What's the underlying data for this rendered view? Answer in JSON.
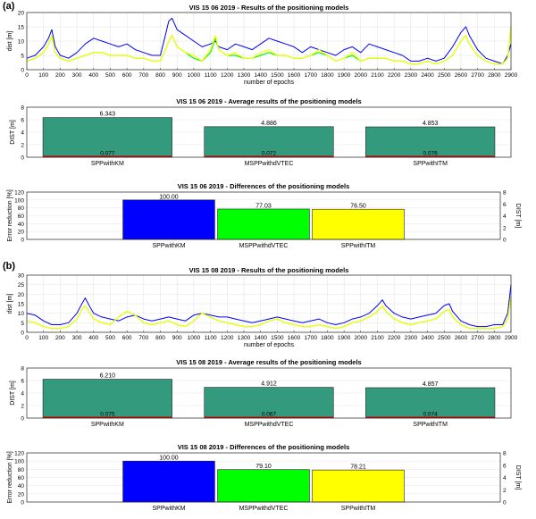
{
  "figure": {
    "panel_a_label": "(a)",
    "panel_b_label": "(b)"
  },
  "chart_data": [
    {
      "id": "a-line",
      "type": "line",
      "title": "VIS 15 06 2019 - Results of the positioning models",
      "xlabel": "number of epochs",
      "ylabel": "dist [m]",
      "xlim": [
        0,
        2900
      ],
      "ylim": [
        0,
        20
      ],
      "xticks": [
        0,
        100,
        200,
        300,
        400,
        500,
        600,
        700,
        800,
        900,
        1000,
        1100,
        1200,
        1300,
        1400,
        1500,
        1600,
        1700,
        1800,
        1900,
        2000,
        2100,
        2200,
        2300,
        2400,
        2500,
        2600,
        2700,
        2800,
        2900
      ],
      "yticks": [
        0,
        5,
        10,
        15,
        20
      ],
      "grid": true,
      "series": [
        {
          "name": "SPPwithKM",
          "color": "#0000ff",
          "x": [
            0,
            50,
            100,
            130,
            150,
            170,
            200,
            250,
            300,
            350,
            400,
            450,
            500,
            550,
            600,
            650,
            700,
            750,
            800,
            830,
            850,
            870,
            900,
            950,
            1000,
            1050,
            1100,
            1130,
            1150,
            1200,
            1250,
            1300,
            1350,
            1400,
            1450,
            1500,
            1550,
            1600,
            1650,
            1700,
            1750,
            1800,
            1850,
            1900,
            1950,
            2000,
            2050,
            2100,
            2150,
            2200,
            2250,
            2300,
            2350,
            2400,
            2450,
            2500,
            2550,
            2600,
            2630,
            2650,
            2700,
            2750,
            2800,
            2850,
            2880,
            2900
          ],
          "y": [
            4,
            5,
            8,
            11,
            14,
            8,
            5,
            4,
            6,
            9,
            11,
            10,
            9,
            8,
            9,
            7,
            6,
            5,
            5,
            12,
            17,
            18,
            14,
            12,
            10,
            8,
            9,
            10,
            8,
            7,
            9,
            8,
            7,
            9,
            11,
            10,
            9,
            8,
            6,
            8,
            7,
            6,
            5,
            7,
            8,
            6,
            9,
            8,
            7,
            6,
            5,
            3,
            3,
            4,
            3,
            4,
            8,
            13,
            15,
            12,
            7,
            4,
            3,
            2,
            5,
            9
          ]
        },
        {
          "name": "MSPPwithdVTEC",
          "color": "#00ff00",
          "x": [
            0,
            50,
            100,
            130,
            150,
            170,
            200,
            250,
            300,
            350,
            400,
            450,
            500,
            550,
            600,
            650,
            700,
            750,
            800,
            830,
            850,
            870,
            900,
            950,
            1000,
            1050,
            1100,
            1130,
            1150,
            1200,
            1250,
            1300,
            1350,
            1400,
            1450,
            1500,
            1550,
            1600,
            1650,
            1700,
            1750,
            1800,
            1850,
            1900,
            1950,
            2000,
            2050,
            2100,
            2150,
            2200,
            2250,
            2300,
            2350,
            2400,
            2450,
            2500,
            2550,
            2600,
            2630,
            2650,
            2700,
            2750,
            2800,
            2850,
            2880,
            2900
          ],
          "y": [
            3,
            4,
            6,
            9,
            12,
            6,
            4,
            3,
            4,
            5,
            6,
            6,
            5,
            5,
            5,
            4,
            4,
            3,
            3,
            7,
            10,
            12,
            8,
            6,
            4,
            3,
            6,
            11,
            7,
            5,
            5,
            4,
            4,
            5,
            6,
            5,
            5,
            4,
            4,
            5,
            6,
            5,
            3,
            4,
            5,
            3,
            4,
            4,
            4,
            3,
            3,
            2,
            2,
            3,
            2,
            3,
            5,
            10,
            12,
            9,
            5,
            3,
            2,
            2,
            4,
            15
          ]
        },
        {
          "name": "SPPwithITM",
          "color": "#ffff00",
          "x": [
            0,
            50,
            100,
            130,
            150,
            170,
            200,
            250,
            300,
            350,
            400,
            450,
            500,
            550,
            600,
            650,
            700,
            750,
            800,
            830,
            850,
            870,
            900,
            950,
            1000,
            1050,
            1100,
            1130,
            1150,
            1200,
            1250,
            1300,
            1350,
            1400,
            1450,
            1500,
            1550,
            1600,
            1650,
            1700,
            1750,
            1800,
            1850,
            1900,
            1950,
            2000,
            2050,
            2100,
            2150,
            2200,
            2250,
            2300,
            2350,
            2400,
            2450,
            2500,
            2550,
            2600,
            2630,
            2650,
            2700,
            2750,
            2800,
            2850,
            2880,
            2900
          ],
          "y": [
            3,
            4,
            6,
            9,
            12,
            6,
            4,
            3,
            4,
            5,
            6,
            6,
            5,
            5,
            5,
            4,
            4,
            3,
            3,
            7,
            10,
            12,
            8,
            6,
            5,
            3,
            7,
            12,
            7,
            5,
            6,
            4,
            4,
            6,
            7,
            5,
            5,
            4,
            4,
            5,
            7,
            5,
            3,
            4,
            6,
            3,
            4,
            4,
            4,
            3,
            3,
            2,
            2,
            3,
            2,
            3,
            5,
            10,
            12,
            9,
            5,
            3,
            2,
            2,
            4,
            15
          ]
        }
      ]
    },
    {
      "id": "a-avg",
      "type": "bar",
      "title": "VIS 15 06 2019 - Average results of the positioning models",
      "ylabel": "DIST [m]",
      "ylim": [
        0,
        8
      ],
      "yticks": [
        0,
        2,
        4,
        6,
        8
      ],
      "categories": [
        "SPPwithKM",
        "MSPPwithdVTEC",
        "SPPwithITM"
      ],
      "values": [
        6.343,
        4.886,
        4.853
      ],
      "value_labels": [
        "6.343",
        "4.886",
        "4.853"
      ],
      "baseline_values": [
        0.077,
        0.072,
        0.076
      ],
      "baseline_labels": [
        "0.077",
        "0.072",
        "0.076"
      ],
      "bar_color": "#339a7e",
      "baseline_color": "#cc0000"
    },
    {
      "id": "a-diff",
      "type": "bar",
      "title": "VIS 15 06 2019 - Differences of the positioning models",
      "ylabel": "Error reduction [%]",
      "y2label": "DIST [m]",
      "ylim": [
        0,
        120
      ],
      "yticks": [
        0,
        20,
        40,
        60,
        80,
        100,
        120
      ],
      "y2ticks": [
        0,
        2,
        4,
        6,
        8
      ],
      "categories": [
        "SPPwithKM",
        "MSPPwithdVTEC",
        "SPPwithITM"
      ],
      "values": [
        100.0,
        77.03,
        76.5
      ],
      "value_labels": [
        "100.00",
        "77.03",
        "76.50"
      ],
      "colors": [
        "#0000ff",
        "#00ff00",
        "#ffff00"
      ]
    },
    {
      "id": "b-line",
      "type": "line",
      "title": "VIS 15 08 2019 - Results of the positioning models",
      "xlabel": "number of epochs",
      "ylabel": "dist [m]",
      "xlim": [
        0,
        2900
      ],
      "ylim": [
        0,
        30
      ],
      "xticks": [
        0,
        100,
        200,
        300,
        400,
        500,
        600,
        700,
        800,
        900,
        1000,
        1100,
        1200,
        1300,
        1400,
        1500,
        1600,
        1700,
        1800,
        1900,
        2000,
        2100,
        2200,
        2300,
        2400,
        2500,
        2600,
        2700,
        2800,
        2900
      ],
      "yticks": [
        0,
        5,
        10,
        15,
        20,
        25,
        30
      ],
      "grid": true,
      "series": [
        {
          "name": "SPPwithKM",
          "color": "#0000ff",
          "x": [
            0,
            50,
            100,
            150,
            200,
            250,
            300,
            330,
            350,
            380,
            400,
            450,
            500,
            550,
            600,
            650,
            700,
            750,
            800,
            850,
            900,
            950,
            1000,
            1050,
            1100,
            1150,
            1200,
            1250,
            1300,
            1350,
            1400,
            1450,
            1500,
            1550,
            1600,
            1650,
            1700,
            1750,
            1800,
            1850,
            1900,
            1950,
            2000,
            2050,
            2100,
            2130,
            2150,
            2200,
            2250,
            2300,
            2350,
            2400,
            2450,
            2500,
            2530,
            2550,
            2600,
            2650,
            2700,
            2750,
            2800,
            2850,
            2880,
            2900
          ],
          "y": [
            10,
            9,
            6,
            4,
            4,
            5,
            10,
            15,
            18,
            13,
            10,
            8,
            7,
            6,
            8,
            9,
            7,
            6,
            7,
            8,
            7,
            6,
            9,
            10,
            9,
            8,
            8,
            7,
            6,
            5,
            6,
            7,
            8,
            7,
            6,
            5,
            6,
            7,
            5,
            4,
            5,
            7,
            8,
            10,
            14,
            17,
            14,
            10,
            8,
            7,
            8,
            9,
            10,
            14,
            15,
            11,
            6,
            4,
            3,
            3,
            4,
            4,
            10,
            25
          ]
        },
        {
          "name": "MSPPwithdVTEC",
          "color": "#00ff00",
          "x": [
            0,
            50,
            100,
            150,
            200,
            250,
            300,
            330,
            350,
            380,
            400,
            450,
            500,
            550,
            600,
            650,
            700,
            750,
            800,
            850,
            900,
            950,
            1000,
            1050,
            1100,
            1150,
            1200,
            1250,
            1300,
            1350,
            1400,
            1450,
            1500,
            1550,
            1600,
            1650,
            1700,
            1750,
            1800,
            1850,
            1900,
            1950,
            2000,
            2050,
            2100,
            2130,
            2150,
            2200,
            2250,
            2300,
            2350,
            2400,
            2450,
            2500,
            2530,
            2550,
            2600,
            2650,
            2700,
            2750,
            2800,
            2850,
            2880,
            2900
          ],
          "y": [
            6,
            5,
            3,
            2,
            2,
            3,
            7,
            12,
            14,
            10,
            7,
            5,
            4,
            8,
            11,
            9,
            5,
            4,
            5,
            6,
            4,
            3,
            6,
            10,
            8,
            6,
            5,
            4,
            3,
            3,
            4,
            6,
            7,
            5,
            4,
            3,
            3,
            4,
            3,
            2,
            3,
            5,
            6,
            8,
            11,
            14,
            11,
            7,
            5,
            4,
            5,
            6,
            7,
            11,
            12,
            8,
            4,
            2,
            2,
            2,
            2,
            3,
            7,
            19
          ]
        },
        {
          "name": "SPPwithITM",
          "color": "#ffff00",
          "x": [
            0,
            50,
            100,
            150,
            200,
            250,
            300,
            330,
            350,
            380,
            400,
            450,
            500,
            550,
            600,
            650,
            700,
            750,
            800,
            850,
            900,
            950,
            1000,
            1050,
            1100,
            1150,
            1200,
            1250,
            1300,
            1350,
            1400,
            1450,
            1500,
            1550,
            1600,
            1650,
            1700,
            1750,
            1800,
            1850,
            1900,
            1950,
            2000,
            2050,
            2100,
            2130,
            2150,
            2200,
            2250,
            2300,
            2350,
            2400,
            2450,
            2500,
            2530,
            2550,
            2600,
            2650,
            2700,
            2750,
            2800,
            2850,
            2880,
            2900
          ],
          "y": [
            6,
            5,
            3,
            2,
            2,
            3,
            7,
            12,
            14,
            10,
            7,
            5,
            4,
            8,
            11,
            9,
            5,
            4,
            5,
            6,
            4,
            3,
            6,
            10,
            8,
            6,
            5,
            4,
            3,
            3,
            4,
            6,
            7,
            5,
            4,
            3,
            3,
            4,
            3,
            2,
            3,
            5,
            6,
            8,
            11,
            14,
            11,
            7,
            5,
            4,
            5,
            6,
            7,
            11,
            12,
            8,
            4,
            2,
            2,
            2,
            2,
            3,
            7,
            19
          ]
        }
      ]
    },
    {
      "id": "b-avg",
      "type": "bar",
      "title": "VIS 15 08 2019 - Average results of the positioning models",
      "ylabel": "DIST [m]",
      "ylim": [
        0,
        8
      ],
      "yticks": [
        0,
        2,
        4,
        6,
        8
      ],
      "categories": [
        "SPPwithKM",
        "MSPPwithdVTEC",
        "SPPwithITM"
      ],
      "values": [
        6.21,
        4.912,
        4.857
      ],
      "value_labels": [
        "6.210",
        "4.912",
        "4.857"
      ],
      "baseline_values": [
        0.075,
        0.067,
        0.074
      ],
      "baseline_labels": [
        "0.075",
        "0.067",
        "0.074"
      ],
      "bar_color": "#339a7e",
      "baseline_color": "#cc0000"
    },
    {
      "id": "b-diff",
      "type": "bar",
      "title": "VIS 15 08 2019 - Differences of the positioning models",
      "ylabel": "Error reduction [%]",
      "y2label": "DIST [m]",
      "ylim": [
        0,
        120
      ],
      "yticks": [
        0,
        20,
        40,
        60,
        80,
        100,
        120
      ],
      "y2ticks": [
        0,
        2,
        4,
        6,
        8
      ],
      "categories": [
        "SPPwithKM",
        "MSPPwithdVTEC",
        "SPPwithITM"
      ],
      "values": [
        100.0,
        79.1,
        78.21
      ],
      "value_labels": [
        "100.00",
        "79.10",
        "78.21"
      ],
      "colors": [
        "#0000ff",
        "#00ff00",
        "#ffff00"
      ]
    }
  ]
}
